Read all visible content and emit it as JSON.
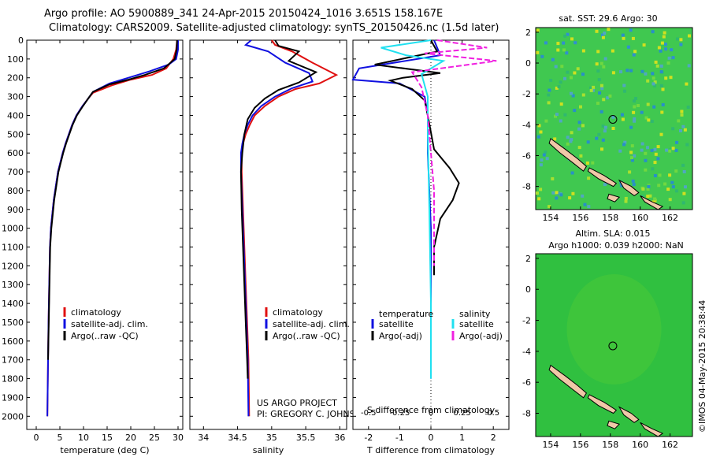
{
  "header": {
    "line1": "Argo profile: AO 5900889_341 24-Apr-2015 20150424_1016 3.651S 158.167E",
    "line2": "Climatology: CARS2009. Satellite-adjusted climatology: synTS_20150426.nc (1.5d later)"
  },
  "colors": {
    "climatology": "#e01010",
    "satellite": "#1010e0",
    "argo": "#000000",
    "satellite_sal": "#20e0f0",
    "argo_sal": "#f020e0",
    "sst_bg": "#40c850",
    "sla_bg": "#30c040",
    "land": "#f0c8a8"
  },
  "chart_data": [
    {
      "id": "temperature",
      "type": "line",
      "xlabel": "temperature (deg C)",
      "xlim": [
        -2,
        31
      ],
      "ylim": [
        0,
        2070
      ],
      "xticks": [
        0,
        5,
        10,
        15,
        20,
        25,
        30
      ],
      "yticks": [
        0,
        100,
        200,
        300,
        400,
        500,
        600,
        700,
        800,
        900,
        1000,
        1100,
        1200,
        1300,
        1400,
        1500,
        1600,
        1700,
        1800,
        1900,
        2000
      ],
      "legend": [
        "climatology",
        "satellite-adj. clim.",
        "Argo(..raw -QC)"
      ],
      "series": [
        {
          "name": "climatology",
          "color": "#e01010",
          "x": [
            29.8,
            29.6,
            29.0,
            27.5,
            24.5,
            20.0,
            16.0,
            12.0,
            11.0,
            9.8,
            8.5,
            7.6,
            6.9,
            6.2,
            5.6,
            5.1,
            4.6,
            3.7,
            3.1,
            2.9,
            2.6,
            2.5,
            2.35
          ],
          "y": [
            0,
            50,
            100,
            150,
            185,
            210,
            240,
            280,
            310,
            350,
            400,
            450,
            500,
            550,
            600,
            650,
            700,
            850,
            1000,
            1100,
            1500,
            1700,
            2000
          ]
        },
        {
          "name": "satellite-adj. clim.",
          "color": "#1010e0",
          "x": [
            30.0,
            30.0,
            29.6,
            28.0,
            24.0,
            19.5,
            15.5,
            12.0,
            11.0,
            9.8,
            8.5,
            7.6,
            6.9,
            6.2,
            5.6,
            5.1,
            4.6,
            3.7,
            3.1,
            2.9,
            2.6,
            2.5,
            2.35
          ],
          "y": [
            0,
            50,
            100,
            130,
            165,
            200,
            230,
            275,
            310,
            350,
            400,
            450,
            500,
            550,
            600,
            650,
            700,
            850,
            1000,
            1100,
            1500,
            1700,
            2000
          ]
        },
        {
          "name": "Argo(..raw -QC)",
          "color": "#000000",
          "x": [
            29.8,
            29.7,
            29.3,
            27.0,
            23.0,
            19.5,
            15.5,
            12.0,
            11.0,
            9.9,
            8.6,
            7.7,
            7.0,
            6.3,
            5.7,
            5.2,
            4.7,
            3.8,
            3.2,
            2.95,
            2.65,
            2.5
          ],
          "y": [
            0,
            50,
            100,
            150,
            185,
            210,
            235,
            275,
            310,
            350,
            400,
            450,
            500,
            550,
            600,
            650,
            700,
            850,
            1000,
            1100,
            1500,
            1700
          ]
        }
      ]
    },
    {
      "id": "salinity",
      "type": "line",
      "xlabel": "salinity",
      "xlim": [
        33.8,
        36.1
      ],
      "ylim": [
        0,
        2070
      ],
      "xticks": [
        34,
        34.5,
        35,
        35.5,
        36
      ],
      "legend": [
        "climatology",
        "satellite-adj. clim.",
        "Argo(..raw -QC)"
      ],
      "annotation": [
        "US ARGO PROJECT",
        "PI: GREGORY C. JOHNSON"
      ],
      "series": [
        {
          "name": "climatology",
          "color": "#e01010",
          "x": [
            35.0,
            35.05,
            35.3,
            35.6,
            35.95,
            35.7,
            35.35,
            35.1,
            34.9,
            34.75,
            34.68,
            34.62,
            34.58,
            34.56,
            34.56,
            34.58,
            34.6,
            34.62,
            34.64,
            34.66,
            34.67
          ],
          "y": [
            0,
            25,
            60,
            120,
            185,
            230,
            260,
            300,
            350,
            400,
            450,
            500,
            550,
            600,
            700,
            900,
            1100,
            1300,
            1500,
            1700,
            2000
          ]
        },
        {
          "name": "satellite-adj. clim.",
          "color": "#1010e0",
          "x": [
            34.7,
            34.62,
            34.95,
            35.2,
            35.55,
            35.6,
            35.3,
            35.05,
            34.85,
            34.72,
            34.65,
            34.6,
            34.57,
            34.55,
            34.55,
            34.57,
            34.59,
            34.61,
            34.63,
            34.65,
            34.66
          ],
          "y": [
            0,
            25,
            60,
            120,
            175,
            220,
            255,
            300,
            350,
            400,
            450,
            500,
            550,
            600,
            700,
            900,
            1100,
            1300,
            1500,
            1700,
            2000
          ]
        },
        {
          "name": "Argo(..raw -QC)",
          "color": "#000000",
          "x": [
            35.05,
            35.1,
            35.4,
            35.25,
            35.65,
            35.4,
            35.1,
            34.9,
            34.75,
            34.65,
            34.6,
            34.57,
            34.55,
            34.56,
            34.58,
            34.6,
            34.62,
            34.64,
            34.65
          ],
          "y": [
            0,
            30,
            60,
            110,
            170,
            225,
            265,
            310,
            360,
            420,
            500,
            600,
            700,
            900,
            1100,
            1300,
            1500,
            1700,
            1800
          ]
        }
      ]
    },
    {
      "id": "difference",
      "type": "line",
      "xlabel": "T difference from climatology",
      "xlabel_top": "S difference from climatology",
      "xlim": [
        -2.5,
        2.5
      ],
      "ylim": [
        0,
        2070
      ],
      "xticks": [
        -2,
        -1,
        0,
        1,
        2
      ],
      "xtick_labels": [
        "-2",
        "-1",
        "0",
        "1",
        "2"
      ],
      "s_xticks": [
        -0.5,
        -0.25,
        0,
        0.25,
        0.5
      ],
      "s_xtick_labels": [
        "-0.5",
        "-0.25",
        "0",
        "0.25",
        "0.5"
      ],
      "legend_temperature_title": "temperature",
      "legend_salinity_title": "salinity",
      "legend": [
        "satellite",
        "Argo(-adj)",
        "satellite",
        "Argo(-adj)"
      ],
      "series": [
        {
          "name": "temperature satellite",
          "color": "#1010e0",
          "x": [
            0.1,
            0.3,
            -2.3,
            -2.5,
            -1.0,
            -0.2,
            -0.1,
            -0.1,
            -0.05,
            0,
            0,
            0
          ],
          "y": [
            0,
            80,
            150,
            210,
            230,
            300,
            400,
            600,
            800,
            1000,
            1400,
            1800
          ]
        },
        {
          "name": "temperature Argo(-adj)",
          "color": "#000000",
          "x": [
            0,
            0.2,
            -1.8,
            0.3,
            -0.9,
            -1.3,
            -0.6,
            -0.2,
            -0.1,
            0.1,
            0.6,
            0.9,
            0.7,
            0.3,
            0.1,
            0.1
          ],
          "y": [
            0,
            60,
            130,
            175,
            200,
            215,
            260,
            320,
            400,
            580,
            680,
            760,
            850,
            950,
            1100,
            1250
          ]
        },
        {
          "name": "salinity satellite",
          "color": "#20e0f0",
          "x": [
            0.0,
            -1.6,
            -0.8,
            0.4,
            -0.3,
            -0.1,
            -0.1,
            -0.05,
            0,
            0
          ],
          "y": [
            0,
            40,
            80,
            110,
            180,
            300,
            500,
            900,
            1400,
            1800
          ]
        },
        {
          "name": "salinity Argo(-adj)",
          "color": "#f020e0",
          "x": [
            0.2,
            1.8,
            -0.2,
            2.1,
            -0.6,
            -0.3,
            -0.1,
            0.0,
            0.1,
            0.1,
            0.1
          ],
          "y": [
            0,
            40,
            70,
            110,
            170,
            250,
            400,
            600,
            800,
            1000,
            1200
          ]
        }
      ]
    },
    {
      "id": "sst-map",
      "type": "heatmap",
      "title": "sat. SST: 29.6 Argo: 30",
      "xlim": [
        153,
        163.5
      ],
      "ylim": [
        -9.5,
        2.3
      ],
      "xticks": [
        154,
        156,
        158,
        160,
        162
      ],
      "yticks": [
        2,
        0,
        -2,
        -4,
        -6,
        -8
      ],
      "marker": {
        "lon": 158.167,
        "lat": -3.651
      }
    },
    {
      "id": "sla-map",
      "type": "heatmap",
      "title": "Altim. SLA: 0.015",
      "subtitle": "Argo h1000: 0.039 h2000: NaN",
      "xlim": [
        153,
        163.5
      ],
      "ylim": [
        -9.5,
        2.3
      ],
      "xticks": [
        154,
        156,
        158,
        160,
        162
      ],
      "yticks": [
        2,
        0,
        -2,
        -4,
        -6,
        -8
      ],
      "marker": {
        "lon": 158.167,
        "lat": -3.651
      }
    }
  ],
  "stamp": "©IMOS 04-May-2015 20:38:44"
}
